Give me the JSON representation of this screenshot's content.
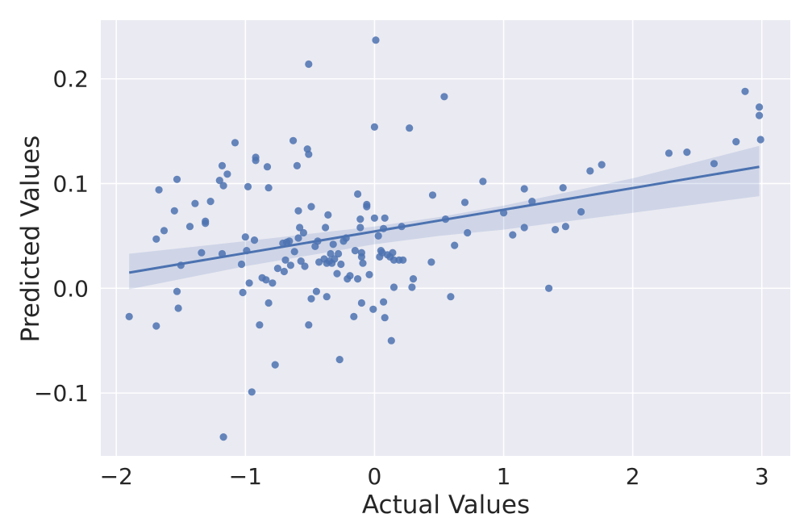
{
  "chart_data": {
    "type": "scatter",
    "title": "",
    "xlabel": "Actual Values",
    "ylabel": "Predicted Values",
    "xlim": [
      -2.12,
      3.22
    ],
    "ylim": [
      -0.16,
      0.256
    ],
    "x_ticks": [
      -2,
      -1,
      0,
      1,
      2,
      3
    ],
    "x_tick_labels": [
      "−2",
      "−1",
      "0",
      "1",
      "2",
      "3"
    ],
    "y_ticks": [
      -0.1,
      0.0,
      0.1,
      0.2
    ],
    "y_tick_labels": [
      "−0.1",
      "0.0",
      "0.1",
      "0.2"
    ],
    "grid": true,
    "colors": {
      "background": "#EAEAF2",
      "grid": "#FFFFFF",
      "points": "#4C72B0",
      "line": "#4C72B0",
      "band": "#4C72B0"
    },
    "regression": {
      "x": [
        -1.9,
        2.98
      ],
      "y": [
        0.015,
        0.116
      ]
    },
    "confidence_band": {
      "x": [
        -1.9,
        -1.0,
        0.0,
        0.5,
        1.0,
        2.0,
        2.98
      ],
      "lower": [
        -0.001,
        0.021,
        0.042,
        0.05,
        0.056,
        0.072,
        0.088
      ],
      "upper": [
        0.033,
        0.045,
        0.059,
        0.068,
        0.079,
        0.105,
        0.136
      ]
    },
    "points": [
      [
        -1.9,
        -0.027
      ],
      [
        -1.69,
        -0.036
      ],
      [
        -1.69,
        0.047
      ],
      [
        -1.67,
        0.094
      ],
      [
        -1.63,
        0.055
      ],
      [
        -1.55,
        0.074
      ],
      [
        -1.53,
        0.104
      ],
      [
        -1.53,
        -0.003
      ],
      [
        -1.52,
        -0.019
      ],
      [
        -1.5,
        0.022
      ],
      [
        -1.43,
        0.059
      ],
      [
        -1.39,
        0.081
      ],
      [
        -1.34,
        0.034
      ],
      [
        -1.31,
        0.064
      ],
      [
        -1.31,
        0.062
      ],
      [
        -1.27,
        0.083
      ],
      [
        -1.2,
        0.103
      ],
      [
        -1.18,
        0.117
      ],
      [
        -1.18,
        0.033
      ],
      [
        -1.17,
        0.098
      ],
      [
        -1.17,
        -0.142
      ],
      [
        -1.14,
        0.109
      ],
      [
        -1.08,
        0.139
      ],
      [
        -1.03,
        0.023
      ],
      [
        -1.02,
        -0.004
      ],
      [
        -1.0,
        0.049
      ],
      [
        -0.99,
        0.036
      ],
      [
        -0.98,
        0.097
      ],
      [
        -0.97,
        0.005
      ],
      [
        -0.95,
        -0.099
      ],
      [
        -0.93,
        0.046
      ],
      [
        -0.92,
        0.125
      ],
      [
        -0.92,
        0.122
      ],
      [
        -0.89,
        -0.035
      ],
      [
        -0.87,
        0.01
      ],
      [
        -0.84,
        0.008
      ],
      [
        -0.83,
        0.116
      ],
      [
        -0.82,
        0.096
      ],
      [
        -0.82,
        -0.014
      ],
      [
        -0.79,
        0.005
      ],
      [
        -0.77,
        -0.073
      ],
      [
        -0.75,
        0.019
      ],
      [
        -0.71,
        0.043
      ],
      [
        -0.7,
        0.016
      ],
      [
        -0.69,
        0.027
      ],
      [
        -0.68,
        0.044
      ],
      [
        -0.66,
        0.045
      ],
      [
        -0.65,
        0.022
      ],
      [
        -0.63,
        0.141
      ],
      [
        -0.62,
        0.035
      ],
      [
        -0.6,
        0.117
      ],
      [
        -0.59,
        0.074
      ],
      [
        -0.59,
        0.048
      ],
      [
        -0.58,
        0.058
      ],
      [
        -0.57,
        0.026
      ],
      [
        -0.55,
        0.053
      ],
      [
        -0.54,
        0.021
      ],
      [
        -0.52,
        0.133
      ],
      [
        -0.51,
        0.128
      ],
      [
        -0.51,
        0.214
      ],
      [
        -0.51,
        -0.035
      ],
      [
        -0.49,
        0.078
      ],
      [
        -0.49,
        -0.01
      ],
      [
        -0.46,
        0.04
      ],
      [
        -0.45,
        -0.003
      ],
      [
        -0.44,
        0.045
      ],
      [
        -0.43,
        0.025
      ],
      [
        -0.39,
        0.028
      ],
      [
        -0.38,
        0.058
      ],
      [
        -0.37,
        -0.008
      ],
      [
        -0.37,
        0.024
      ],
      [
        -0.36,
        0.07
      ],
      [
        -0.35,
        0.026
      ],
      [
        -0.34,
        0.033
      ],
      [
        -0.33,
        0.024
      ],
      [
        -0.32,
        0.042
      ],
      [
        -0.31,
        0.028
      ],
      [
        -0.29,
        0.014
      ],
      [
        -0.28,
        0.033
      ],
      [
        -0.27,
        -0.068
      ],
      [
        -0.26,
        0.023
      ],
      [
        -0.24,
        0.045
      ],
      [
        -0.22,
        0.048
      ],
      [
        -0.21,
        0.009
      ],
      [
        -0.19,
        0.012
      ],
      [
        -0.16,
        -0.027
      ],
      [
        -0.15,
        0.036
      ],
      [
        -0.13,
        0.09
      ],
      [
        -0.13,
        0.009
      ],
      [
        -0.11,
        0.066
      ],
      [
        -0.11,
        0.058
      ],
      [
        -0.1,
        -0.014
      ],
      [
        -0.1,
        0.034
      ],
      [
        -0.1,
        0.03
      ],
      [
        -0.09,
        0.024
      ],
      [
        -0.06,
        0.08
      ],
      [
        -0.06,
        0.078
      ],
      [
        -0.04,
        0.013
      ],
      [
        -0.01,
        -0.02
      ],
      [
        0.0,
        0.067
      ],
      [
        0.0,
        0.154
      ],
      [
        0.01,
        0.237
      ],
      [
        0.03,
        0.05
      ],
      [
        0.04,
        0.03
      ],
      [
        0.05,
        0.036
      ],
      [
        0.06,
        0.034
      ],
      [
        0.07,
        -0.013
      ],
      [
        0.07,
        0.057
      ],
      [
        0.08,
        0.067
      ],
      [
        0.08,
        -0.028
      ],
      [
        0.1,
        0.032
      ],
      [
        0.12,
        0.03
      ],
      [
        0.13,
        -0.05
      ],
      [
        0.14,
        0.034
      ],
      [
        0.15,
        0.001
      ],
      [
        0.15,
        0.027
      ],
      [
        0.19,
        0.027
      ],
      [
        0.21,
        0.059
      ],
      [
        0.22,
        0.027
      ],
      [
        0.27,
        0.153
      ],
      [
        0.29,
        0.001
      ],
      [
        0.3,
        0.009
      ],
      [
        0.44,
        0.025
      ],
      [
        0.45,
        0.089
      ],
      [
        0.54,
        0.183
      ],
      [
        0.55,
        0.066
      ],
      [
        0.59,
        -0.008
      ],
      [
        0.62,
        0.041
      ],
      [
        0.7,
        0.082
      ],
      [
        0.72,
        0.053
      ],
      [
        0.84,
        0.102
      ],
      [
        1.0,
        0.072
      ],
      [
        1.07,
        0.051
      ],
      [
        1.16,
        0.058
      ],
      [
        1.16,
        0.095
      ],
      [
        1.22,
        0.083
      ],
      [
        1.35,
        0.0
      ],
      [
        1.4,
        0.056
      ],
      [
        1.46,
        0.096
      ],
      [
        1.48,
        0.059
      ],
      [
        1.6,
        0.073
      ],
      [
        1.67,
        0.112
      ],
      [
        1.76,
        0.118
      ],
      [
        2.28,
        0.129
      ],
      [
        2.42,
        0.13
      ],
      [
        2.63,
        0.119
      ],
      [
        2.8,
        0.14
      ],
      [
        2.87,
        0.188
      ],
      [
        2.98,
        0.173
      ],
      [
        2.98,
        0.165
      ],
      [
        2.99,
        0.142
      ]
    ]
  }
}
